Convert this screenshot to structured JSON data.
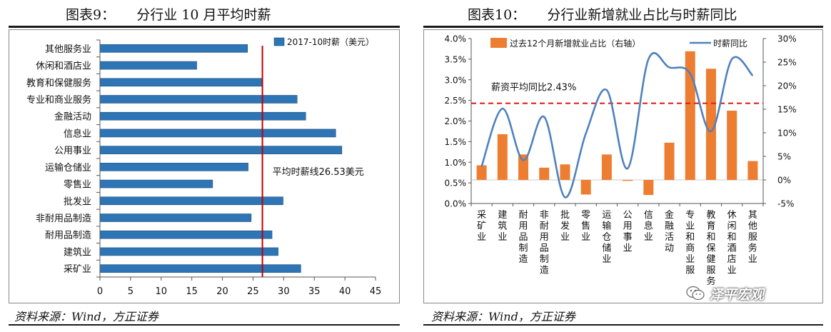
{
  "left_panel": {
    "title": "图表9：     分行业 10 月平均时薪",
    "source": "资料来源：Wind，方正证券"
  },
  "right_panel": {
    "title": "图表10：     分行业新增就业占比与时薪同比",
    "source": "资料来源：Wind，方正证券"
  },
  "watermark": {
    "text": "泽平宏观",
    "icon": "wechat-icon"
  },
  "chart_data": [
    {
      "type": "bar",
      "orientation": "horizontal",
      "categories": [
        "采矿业",
        "建筑业",
        "耐用品制造",
        "非耐用品制造",
        "批发业",
        "零售业",
        "运输仓储业",
        "公用事业",
        "信息业",
        "金融活动",
        "专业和商业服务",
        "教育和保健服务",
        "休闲和酒店业",
        "其他服务业"
      ],
      "series": [
        {
          "name": "2017-10时薪（美元）",
          "values": [
            32.8,
            29.1,
            28.1,
            24.7,
            29.9,
            18.4,
            24.2,
            39.5,
            38.5,
            33.6,
            32.2,
            26.5,
            15.8,
            24.1
          ],
          "color": "#2e75b6"
        }
      ],
      "xlim": [
        0,
        45
      ],
      "xticks": [
        0,
        5,
        10,
        15,
        20,
        25,
        30,
        35,
        40,
        45
      ],
      "grid": false,
      "legend": "top-right",
      "reference_line": {
        "value": 26.53,
        "label": "平均时薪线26.53美元",
        "color": "#c00000"
      }
    },
    {
      "type": "bar+line",
      "categories": [
        "采矿业",
        "建筑业",
        "耐用品制造",
        "非耐用品制造",
        "批发业",
        "零售业",
        "运输仓储业",
        "公用事业",
        "信息业",
        "金融活动",
        "专业和商业服务",
        "教育和保健服务",
        "休闲和酒店业",
        "其他服务业"
      ],
      "category_labels_vertical": [
        "采矿业",
        "建筑业",
        "耐用品制造",
        "非耐用品制造",
        "批发业",
        "零售业",
        "运输仓储业",
        "公用事业",
        "信息业",
        "金融活动",
        "专业和商业服",
        "教育和保健服务",
        "休闲和酒店业",
        "其他服务业"
      ],
      "series": [
        {
          "name": "过去12个月新增就业占比（右轴）",
          "axis": "right",
          "type": "bar",
          "color": "#ed7d31",
          "values": [
            3.1,
            9.7,
            5.4,
            2.6,
            3.3,
            -3.1,
            5.4,
            -0.2,
            -3.2,
            7.9,
            27.3,
            23.6,
            14.7,
            4.0
          ]
        },
        {
          "name": "时薪同比",
          "axis": "left",
          "type": "line",
          "color": "#4f81bd",
          "values": [
            0.9,
            2.3,
            1.05,
            2.1,
            0.15,
            1.7,
            2.75,
            0.85,
            3.5,
            3.3,
            3.15,
            1.75,
            3.5,
            3.1
          ]
        }
      ],
      "ylim_left": [
        0,
        4
      ],
      "yticks_left": [
        "0.0%",
        "0.5%",
        "1.0%",
        "1.5%",
        "2.0%",
        "2.5%",
        "3.0%",
        "3.5%",
        "4.0%"
      ],
      "ylim_right": [
        -5,
        30
      ],
      "yticks_right": [
        "-5%",
        "0%",
        "5%",
        "10%",
        "15%",
        "20%",
        "25%",
        "30%"
      ],
      "grid": false,
      "legend": "top",
      "reference_line": {
        "value": 2.43,
        "label": "薪资平均同比2.43%",
        "color": "#e02020",
        "style": "dashed"
      }
    }
  ]
}
